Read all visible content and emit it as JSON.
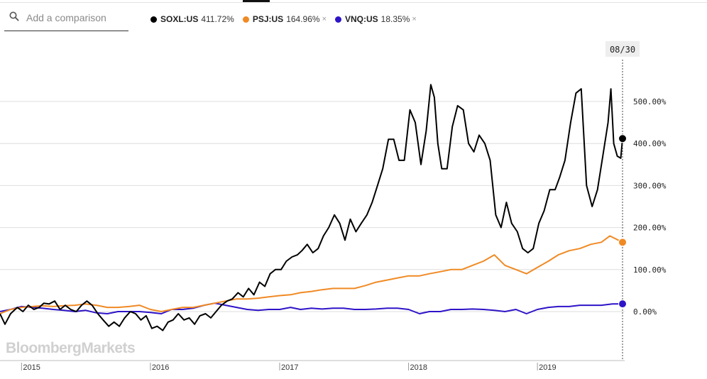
{
  "search": {
    "placeholder": "Add a comparison",
    "icon": "search-icon"
  },
  "chart_data": {
    "type": "line",
    "title": "",
    "xlabel": "",
    "ylabel": "",
    "y_unit": "%",
    "ylim": [
      -135,
      560
    ],
    "xlim": [
      "2014-11-01",
      "2019-09-05"
    ],
    "y_ticks": [
      "0.00%",
      "100.00%",
      "200.00%",
      "300.00%",
      "400.00%",
      "500.00%"
    ],
    "x_ticks": [
      {
        "label": "2015",
        "date": "2015-01-01"
      },
      {
        "label": "2016",
        "date": "2016-01-01"
      },
      {
        "label": "2017",
        "date": "2017-01-01"
      },
      {
        "label": "2018",
        "date": "2018-01-01"
      },
      {
        "label": "2019",
        "date": "2019-01-01"
      }
    ],
    "crosshair_label": "08/30",
    "grid": true,
    "legend_position": "top",
    "watermark": "BloombergMarkets",
    "series": [
      {
        "name": "SOXL:US",
        "color": "#000000",
        "last_value_label": "411.72%",
        "points": [
          [
            "2014-11-01",
            -5
          ],
          [
            "2014-11-15",
            -30
          ],
          [
            "2014-12-01",
            -5
          ],
          [
            "2014-12-20",
            10
          ],
          [
            "2015-01-05",
            0
          ],
          [
            "2015-01-20",
            15
          ],
          [
            "2015-02-05",
            5
          ],
          [
            "2015-02-20",
            10
          ],
          [
            "2015-03-05",
            20
          ],
          [
            "2015-03-20",
            18
          ],
          [
            "2015-04-05",
            25
          ],
          [
            "2015-04-20",
            5
          ],
          [
            "2015-05-05",
            15
          ],
          [
            "2015-05-20",
            5
          ],
          [
            "2015-06-05",
            0
          ],
          [
            "2015-06-20",
            15
          ],
          [
            "2015-07-05",
            25
          ],
          [
            "2015-07-20",
            15
          ],
          [
            "2015-08-05",
            -5
          ],
          [
            "2015-08-20",
            -20
          ],
          [
            "2015-09-05",
            -35
          ],
          [
            "2015-09-20",
            -25
          ],
          [
            "2015-10-05",
            -35
          ],
          [
            "2015-10-20",
            -15
          ],
          [
            "2015-11-05",
            0
          ],
          [
            "2015-11-20",
            -5
          ],
          [
            "2015-12-05",
            -20
          ],
          [
            "2015-12-20",
            -10
          ],
          [
            "2016-01-05",
            -40
          ],
          [
            "2016-01-20",
            -35
          ],
          [
            "2016-02-05",
            -45
          ],
          [
            "2016-02-20",
            -25
          ],
          [
            "2016-03-05",
            -20
          ],
          [
            "2016-03-20",
            -5
          ],
          [
            "2016-04-05",
            -20
          ],
          [
            "2016-04-20",
            -15
          ],
          [
            "2016-05-05",
            -30
          ],
          [
            "2016-05-20",
            -10
          ],
          [
            "2016-06-05",
            -5
          ],
          [
            "2016-06-20",
            -15
          ],
          [
            "2016-07-05",
            0
          ],
          [
            "2016-07-20",
            15
          ],
          [
            "2016-08-05",
            25
          ],
          [
            "2016-08-20",
            30
          ],
          [
            "2016-09-05",
            45
          ],
          [
            "2016-09-20",
            35
          ],
          [
            "2016-10-05",
            55
          ],
          [
            "2016-10-20",
            40
          ],
          [
            "2016-11-05",
            70
          ],
          [
            "2016-11-20",
            60
          ],
          [
            "2016-12-05",
            90
          ],
          [
            "2016-12-20",
            100
          ],
          [
            "2017-01-05",
            100
          ],
          [
            "2017-01-20",
            120
          ],
          [
            "2017-02-05",
            130
          ],
          [
            "2017-02-20",
            135
          ],
          [
            "2017-03-05",
            145
          ],
          [
            "2017-03-20",
            160
          ],
          [
            "2017-04-05",
            140
          ],
          [
            "2017-04-20",
            150
          ],
          [
            "2017-05-05",
            180
          ],
          [
            "2017-05-20",
            200
          ],
          [
            "2017-06-05",
            230
          ],
          [
            "2017-06-20",
            210
          ],
          [
            "2017-07-05",
            170
          ],
          [
            "2017-07-20",
            220
          ],
          [
            "2017-08-05",
            190
          ],
          [
            "2017-08-20",
            210
          ],
          [
            "2017-09-05",
            230
          ],
          [
            "2017-09-20",
            260
          ],
          [
            "2017-10-05",
            300
          ],
          [
            "2017-10-20",
            340
          ],
          [
            "2017-11-05",
            410
          ],
          [
            "2017-11-20",
            410
          ],
          [
            "2017-12-05",
            360
          ],
          [
            "2017-12-20",
            360
          ],
          [
            "2018-01-05",
            480
          ],
          [
            "2018-01-20",
            450
          ],
          [
            "2018-02-05",
            350
          ],
          [
            "2018-02-20",
            430
          ],
          [
            "2018-03-05",
            540
          ],
          [
            "2018-03-15",
            510
          ],
          [
            "2018-03-25",
            400
          ],
          [
            "2018-04-05",
            340
          ],
          [
            "2018-04-20",
            340
          ],
          [
            "2018-05-05",
            440
          ],
          [
            "2018-05-20",
            490
          ],
          [
            "2018-06-05",
            480
          ],
          [
            "2018-06-20",
            400
          ],
          [
            "2018-07-05",
            380
          ],
          [
            "2018-07-20",
            420
          ],
          [
            "2018-08-05",
            400
          ],
          [
            "2018-08-20",
            360
          ],
          [
            "2018-09-05",
            230
          ],
          [
            "2018-09-20",
            200
          ],
          [
            "2018-10-05",
            260
          ],
          [
            "2018-10-20",
            210
          ],
          [
            "2018-11-05",
            190
          ],
          [
            "2018-11-20",
            150
          ],
          [
            "2018-12-05",
            140
          ],
          [
            "2018-12-20",
            150
          ],
          [
            "2019-01-05",
            210
          ],
          [
            "2019-01-20",
            240
          ],
          [
            "2019-02-05",
            290
          ],
          [
            "2019-02-20",
            290
          ],
          [
            "2019-03-05",
            320
          ],
          [
            "2019-03-20",
            360
          ],
          [
            "2019-04-05",
            450
          ],
          [
            "2019-04-20",
            520
          ],
          [
            "2019-05-05",
            530
          ],
          [
            "2019-05-20",
            300
          ],
          [
            "2019-06-05",
            250
          ],
          [
            "2019-06-20",
            290
          ],
          [
            "2019-07-05",
            370
          ],
          [
            "2019-07-20",
            450
          ],
          [
            "2019-07-28",
            530
          ],
          [
            "2019-08-05",
            400
          ],
          [
            "2019-08-15",
            370
          ],
          [
            "2019-08-25",
            365
          ],
          [
            "2019-08-30",
            411.72
          ]
        ]
      },
      {
        "name": "PSJ:US",
        "color": "#f08a24",
        "last_value_label": "164.96%",
        "points": [
          [
            "2014-11-01",
            -5
          ],
          [
            "2014-12-01",
            5
          ],
          [
            "2015-01-01",
            10
          ],
          [
            "2015-02-01",
            12
          ],
          [
            "2015-03-01",
            14
          ],
          [
            "2015-04-01",
            12
          ],
          [
            "2015-05-01",
            14
          ],
          [
            "2015-06-01",
            15
          ],
          [
            "2015-07-01",
            18
          ],
          [
            "2015-08-01",
            15
          ],
          [
            "2015-09-01",
            10
          ],
          [
            "2015-10-01",
            10
          ],
          [
            "2015-11-01",
            12
          ],
          [
            "2015-12-01",
            15
          ],
          [
            "2016-01-01",
            5
          ],
          [
            "2016-02-01",
            0
          ],
          [
            "2016-03-01",
            5
          ],
          [
            "2016-04-01",
            10
          ],
          [
            "2016-05-01",
            10
          ],
          [
            "2016-06-01",
            15
          ],
          [
            "2016-07-01",
            20
          ],
          [
            "2016-08-01",
            25
          ],
          [
            "2016-09-01",
            30
          ],
          [
            "2016-10-01",
            30
          ],
          [
            "2016-11-01",
            32
          ],
          [
            "2016-12-01",
            35
          ],
          [
            "2017-01-01",
            38
          ],
          [
            "2017-02-01",
            40
          ],
          [
            "2017-03-01",
            45
          ],
          [
            "2017-04-01",
            48
          ],
          [
            "2017-05-01",
            52
          ],
          [
            "2017-06-01",
            55
          ],
          [
            "2017-07-01",
            55
          ],
          [
            "2017-08-01",
            55
          ],
          [
            "2017-09-01",
            62
          ],
          [
            "2017-10-01",
            70
          ],
          [
            "2017-11-01",
            75
          ],
          [
            "2017-12-01",
            80
          ],
          [
            "2018-01-01",
            85
          ],
          [
            "2018-02-01",
            85
          ],
          [
            "2018-03-01",
            90
          ],
          [
            "2018-04-01",
            95
          ],
          [
            "2018-05-01",
            100
          ],
          [
            "2018-06-01",
            100
          ],
          [
            "2018-07-01",
            110
          ],
          [
            "2018-08-01",
            120
          ],
          [
            "2018-09-01",
            135
          ],
          [
            "2018-10-01",
            110
          ],
          [
            "2018-11-01",
            100
          ],
          [
            "2018-12-01",
            90
          ],
          [
            "2019-01-01",
            105
          ],
          [
            "2019-02-01",
            120
          ],
          [
            "2019-03-01",
            135
          ],
          [
            "2019-04-01",
            145
          ],
          [
            "2019-05-01",
            150
          ],
          [
            "2019-06-01",
            160
          ],
          [
            "2019-07-01",
            165
          ],
          [
            "2019-07-25",
            180
          ],
          [
            "2019-08-30",
            164.96
          ]
        ]
      },
      {
        "name": "VNQ:US",
        "color": "#2e14c8",
        "last_value_label": "18.35%",
        "points": [
          [
            "2014-11-01",
            0
          ],
          [
            "2014-12-01",
            5
          ],
          [
            "2015-01-01",
            12
          ],
          [
            "2015-02-01",
            10
          ],
          [
            "2015-03-01",
            8
          ],
          [
            "2015-04-01",
            5
          ],
          [
            "2015-05-01",
            3
          ],
          [
            "2015-06-01",
            0
          ],
          [
            "2015-07-01",
            3
          ],
          [
            "2015-08-01",
            -3
          ],
          [
            "2015-09-01",
            -5
          ],
          [
            "2015-10-01",
            0
          ],
          [
            "2015-11-01",
            0
          ],
          [
            "2015-12-01",
            0
          ],
          [
            "2016-01-01",
            -2
          ],
          [
            "2016-02-01",
            -5
          ],
          [
            "2016-03-01",
            5
          ],
          [
            "2016-04-01",
            5
          ],
          [
            "2016-05-01",
            8
          ],
          [
            "2016-06-01",
            15
          ],
          [
            "2016-07-01",
            20
          ],
          [
            "2016-08-01",
            15
          ],
          [
            "2016-09-01",
            10
          ],
          [
            "2016-10-01",
            5
          ],
          [
            "2016-11-01",
            3
          ],
          [
            "2016-12-01",
            5
          ],
          [
            "2017-01-01",
            5
          ],
          [
            "2017-02-01",
            10
          ],
          [
            "2017-03-01",
            5
          ],
          [
            "2017-04-01",
            8
          ],
          [
            "2017-05-01",
            6
          ],
          [
            "2017-06-01",
            8
          ],
          [
            "2017-07-01",
            8
          ],
          [
            "2017-08-01",
            5
          ],
          [
            "2017-09-01",
            5
          ],
          [
            "2017-10-01",
            6
          ],
          [
            "2017-11-01",
            8
          ],
          [
            "2017-12-01",
            8
          ],
          [
            "2018-01-01",
            5
          ],
          [
            "2018-02-01",
            -5
          ],
          [
            "2018-03-01",
            0
          ],
          [
            "2018-04-01",
            0
          ],
          [
            "2018-05-01",
            5
          ],
          [
            "2018-06-01",
            5
          ],
          [
            "2018-07-01",
            6
          ],
          [
            "2018-08-01",
            5
          ],
          [
            "2018-09-01",
            3
          ],
          [
            "2018-10-01",
            0
          ],
          [
            "2018-11-01",
            5
          ],
          [
            "2018-12-01",
            -5
          ],
          [
            "2019-01-01",
            5
          ],
          [
            "2019-02-01",
            10
          ],
          [
            "2019-03-01",
            12
          ],
          [
            "2019-04-01",
            12
          ],
          [
            "2019-05-01",
            15
          ],
          [
            "2019-06-01",
            15
          ],
          [
            "2019-07-01",
            15
          ],
          [
            "2019-08-01",
            18
          ],
          [
            "2019-08-30",
            18.35
          ]
        ]
      }
    ]
  }
}
